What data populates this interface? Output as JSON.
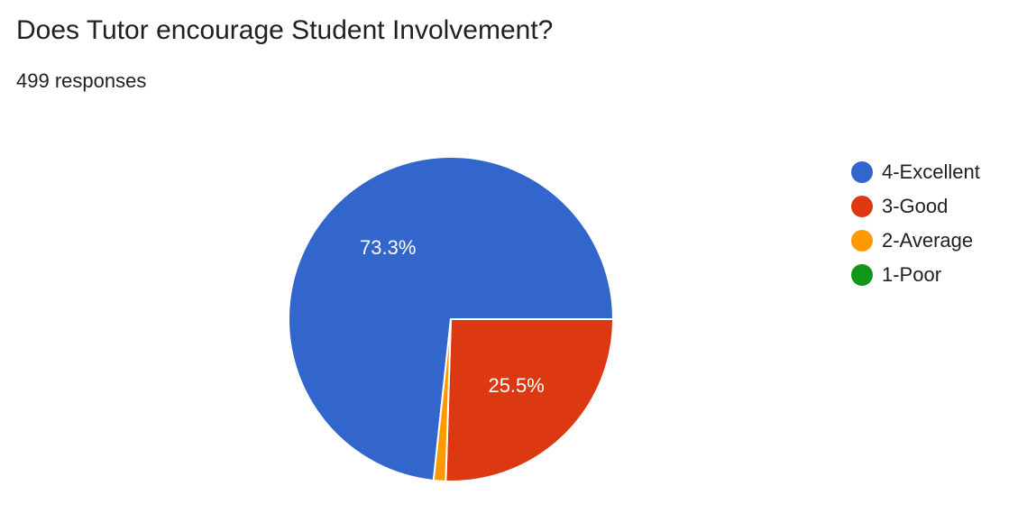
{
  "header": {
    "title": "Does Tutor encourage Student Involvement?",
    "subtitle": "499 responses"
  },
  "chart_data": {
    "type": "pie",
    "title": "Does Tutor encourage Student Involvement?",
    "categories": [
      "4-Excellent",
      "3-Good",
      "2-Average",
      "1-Poor"
    ],
    "values": [
      73.3,
      25.5,
      1.2,
      0
    ],
    "labels": [
      "73.3%",
      "25.5%",
      "",
      ""
    ],
    "colors": [
      "#3366cc",
      "#dc3912",
      "#ff9900",
      "#109618"
    ],
    "legend_position": "right"
  }
}
